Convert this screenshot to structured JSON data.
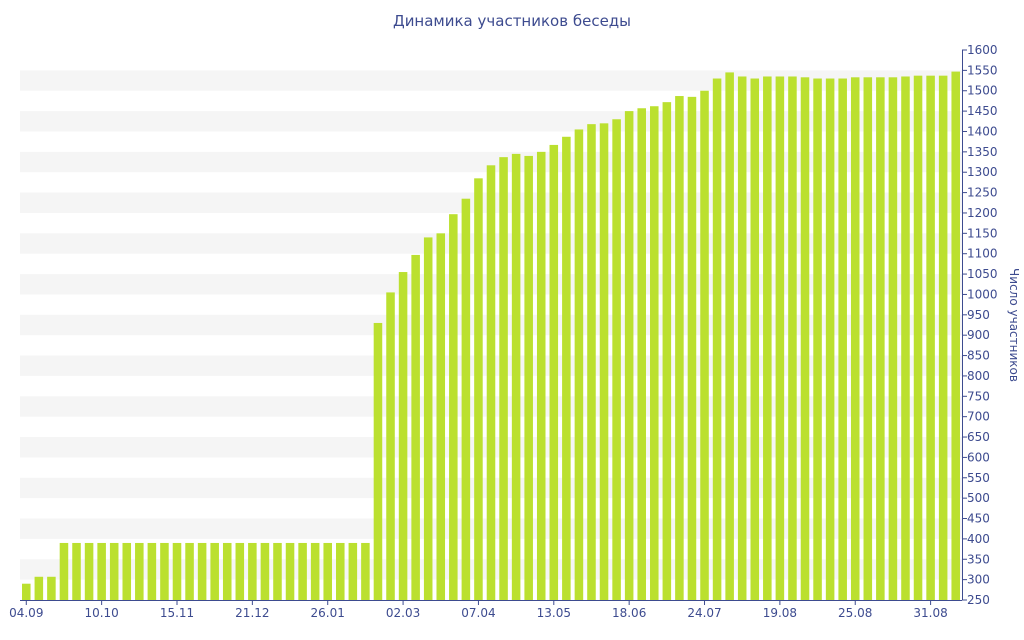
{
  "chart_data": {
    "type": "bar",
    "title": "Динамика участников беседы",
    "xlabel": "",
    "ylabel": "Число участников",
    "ylim": [
      250,
      1600
    ],
    "y_ticks": [
      250,
      300,
      350,
      400,
      450,
      500,
      550,
      600,
      650,
      700,
      750,
      800,
      850,
      900,
      950,
      1000,
      1050,
      1100,
      1150,
      1200,
      1250,
      1300,
      1350,
      1400,
      1450,
      1500,
      1550,
      1600
    ],
    "x_tick_labels": [
      "04.09",
      "10.10",
      "15.11",
      "21.12",
      "26.01",
      "02.03",
      "07.04",
      "13.05",
      "18.06",
      "24.07",
      "19.08",
      "25.08",
      "31.08"
    ],
    "x_tick_positions": [
      0,
      6,
      12,
      18,
      24,
      30,
      36,
      42,
      48,
      54,
      60,
      66,
      72
    ],
    "grid": "horizontal bands",
    "bar_color": "#bbe02f",
    "values": [
      290,
      307,
      307,
      390,
      390,
      390,
      390,
      390,
      390,
      390,
      390,
      390,
      390,
      390,
      390,
      390,
      390,
      390,
      390,
      390,
      390,
      390,
      390,
      390,
      390,
      390,
      390,
      390,
      930,
      1005,
      1055,
      1097,
      1140,
      1150,
      1197,
      1235,
      1285,
      1317,
      1337,
      1345,
      1340,
      1350,
      1367,
      1387,
      1405,
      1418,
      1420,
      1430,
      1450,
      1457,
      1462,
      1472,
      1487,
      1485,
      1500,
      1530,
      1545,
      1535,
      1530,
      1535,
      1535,
      1535,
      1533,
      1530,
      1530,
      1530,
      1533,
      1533,
      1533,
      1533,
      1535,
      1537,
      1537,
      1537,
      1547
    ]
  }
}
